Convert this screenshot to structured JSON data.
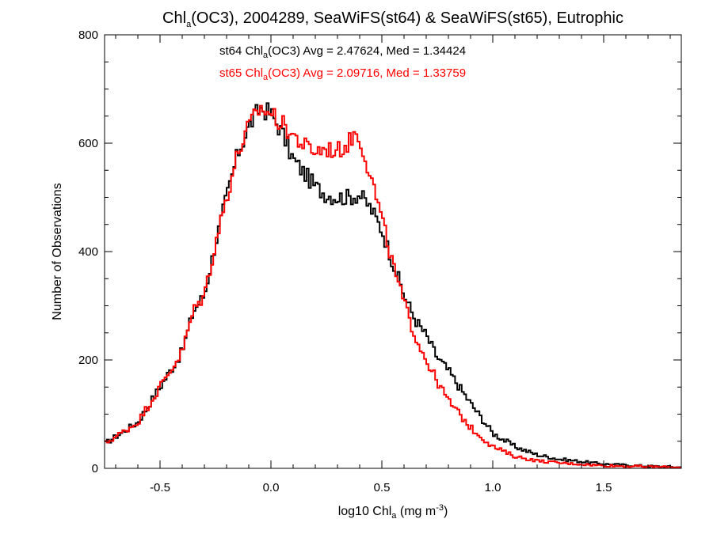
{
  "chart_data": {
    "type": "line",
    "step": true,
    "title_parts": [
      "Chl",
      "a",
      "(OC3), 2004289, SeaWiFS(st64) & SeaWiFS(st65), Eutrophic"
    ],
    "xlabel_parts": [
      "log10 Chl",
      "a",
      " (mg m",
      "-3",
      ")"
    ],
    "ylabel": "Number of Observations",
    "xlim": [
      -0.75,
      1.85
    ],
    "ylim": [
      0,
      800
    ],
    "xticks": [
      -0.5,
      0.0,
      0.5,
      1.0,
      1.5
    ],
    "xtick_labels": [
      "-0.5",
      "0.0",
      "0.5",
      "1.0",
      "1.5"
    ],
    "yticks": [
      0,
      200,
      400,
      600,
      800
    ],
    "ytick_labels": [
      "0",
      "200",
      "400",
      "600",
      "800"
    ],
    "grid": false,
    "series": [
      {
        "name": "st64",
        "color": "#000000",
        "stat_parts": [
          "st64 Chl",
          "a",
          "(OC3) Avg = 2.47624, Med = 1.34424"
        ],
        "anchors": [
          [
            -0.75,
            45
          ],
          [
            -0.6,
            85
          ],
          [
            -0.5,
            150
          ],
          [
            -0.4,
            215
          ],
          [
            -0.35,
            290
          ],
          [
            -0.3,
            320
          ],
          [
            -0.25,
            415
          ],
          [
            -0.2,
            500
          ],
          [
            -0.15,
            580
          ],
          [
            -0.1,
            630
          ],
          [
            -0.05,
            665
          ],
          [
            0.0,
            655
          ],
          [
            0.05,
            620
          ],
          [
            0.1,
            570
          ],
          [
            0.15,
            545
          ],
          [
            0.2,
            520
          ],
          [
            0.25,
            505
          ],
          [
            0.3,
            500
          ],
          [
            0.35,
            500
          ],
          [
            0.4,
            505
          ],
          [
            0.45,
            480
          ],
          [
            0.5,
            440
          ],
          [
            0.55,
            380
          ],
          [
            0.6,
            320
          ],
          [
            0.65,
            275
          ],
          [
            0.7,
            245
          ],
          [
            0.75,
            205
          ],
          [
            0.8,
            180
          ],
          [
            0.9,
            120
          ],
          [
            1.0,
            65
          ],
          [
            1.1,
            40
          ],
          [
            1.2,
            25
          ],
          [
            1.3,
            17
          ],
          [
            1.5,
            8
          ],
          [
            1.7,
            4
          ],
          [
            1.85,
            2
          ]
        ]
      },
      {
        "name": "st65",
        "color": "#ff0000",
        "stat_parts": [
          "st65 Chl",
          "a",
          "(OC3) Avg = 2.09716, Med = 1.33759"
        ],
        "anchors": [
          [
            -0.75,
            45
          ],
          [
            -0.6,
            85
          ],
          [
            -0.5,
            150
          ],
          [
            -0.4,
            215
          ],
          [
            -0.35,
            290
          ],
          [
            -0.3,
            320
          ],
          [
            -0.25,
            415
          ],
          [
            -0.2,
            500
          ],
          [
            -0.15,
            580
          ],
          [
            -0.1,
            630
          ],
          [
            -0.05,
            665
          ],
          [
            0.0,
            655
          ],
          [
            0.05,
            635
          ],
          [
            0.1,
            615
          ],
          [
            0.15,
            595
          ],
          [
            0.2,
            585
          ],
          [
            0.25,
            590
          ],
          [
            0.3,
            585
          ],
          [
            0.35,
            600
          ],
          [
            0.38,
            620
          ],
          [
            0.4,
            610
          ],
          [
            0.45,
            540
          ],
          [
            0.5,
            460
          ],
          [
            0.55,
            375
          ],
          [
            0.6,
            305
          ],
          [
            0.65,
            245
          ],
          [
            0.7,
            200
          ],
          [
            0.75,
            160
          ],
          [
            0.8,
            125
          ],
          [
            0.9,
            75
          ],
          [
            1.0,
            40
          ],
          [
            1.1,
            22
          ],
          [
            1.2,
            14
          ],
          [
            1.3,
            10
          ],
          [
            1.5,
            5
          ],
          [
            1.7,
            3
          ],
          [
            1.85,
            2
          ]
        ]
      }
    ]
  }
}
